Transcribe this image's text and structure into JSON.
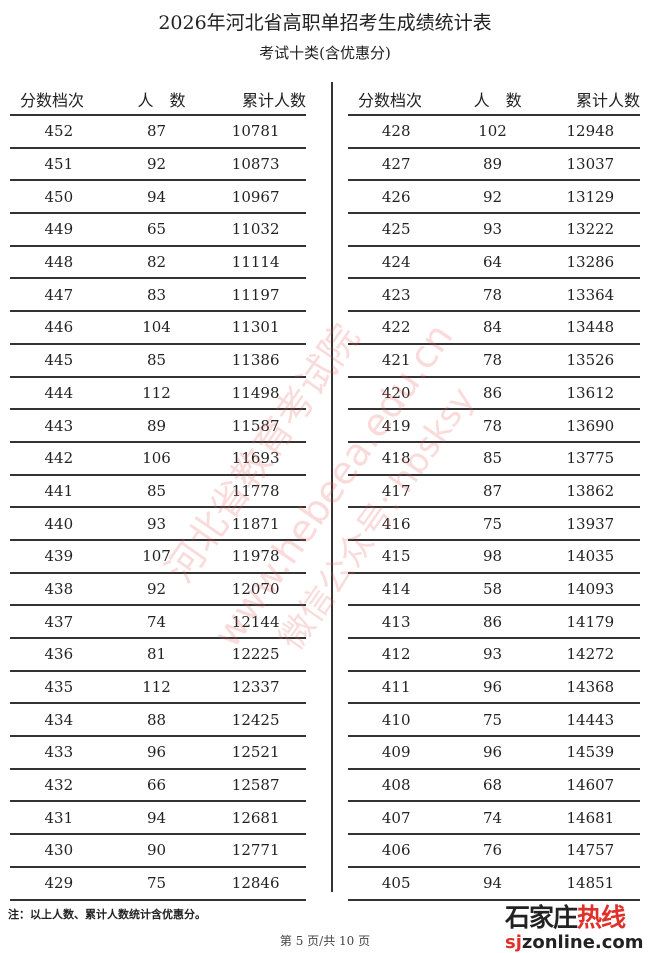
{
  "title": "2026年河北省高职单招考生成绩统计表",
  "subtitle": "考试十类(含优惠分)",
  "headers": [
    "分数档次",
    "人　数",
    "累计人数"
  ],
  "left_rows": [
    [
      452,
      87,
      10781
    ],
    [
      451,
      92,
      10873
    ],
    [
      450,
      94,
      10967
    ],
    [
      449,
      65,
      11032
    ],
    [
      448,
      82,
      11114
    ],
    [
      447,
      83,
      11197
    ],
    [
      446,
      104,
      11301
    ],
    [
      445,
      85,
      11386
    ],
    [
      444,
      112,
      11498
    ],
    [
      443,
      89,
      11587
    ],
    [
      442,
      106,
      11693
    ],
    [
      441,
      85,
      11778
    ],
    [
      440,
      93,
      11871
    ],
    [
      439,
      107,
      11978
    ],
    [
      438,
      92,
      12070
    ],
    [
      437,
      74,
      12144
    ],
    [
      436,
      81,
      12225
    ],
    [
      435,
      112,
      12337
    ],
    [
      434,
      88,
      12425
    ],
    [
      433,
      96,
      12521
    ],
    [
      432,
      66,
      12587
    ],
    [
      431,
      94,
      12681
    ],
    [
      430,
      90,
      12771
    ],
    [
      429,
      75,
      12846
    ]
  ],
  "right_rows": [
    [
      428,
      102,
      12948
    ],
    [
      427,
      89,
      13037
    ],
    [
      426,
      92,
      13129
    ],
    [
      425,
      93,
      13222
    ],
    [
      424,
      64,
      13286
    ],
    [
      423,
      78,
      13364
    ],
    [
      422,
      84,
      13448
    ],
    [
      421,
      78,
      13526
    ],
    [
      420,
      86,
      13612
    ],
    [
      419,
      78,
      13690
    ],
    [
      418,
      85,
      13775
    ],
    [
      417,
      87,
      13862
    ],
    [
      416,
      75,
      13937
    ],
    [
      415,
      98,
      14035
    ],
    [
      414,
      58,
      14093
    ],
    [
      413,
      86,
      14179
    ],
    [
      412,
      93,
      14272
    ],
    [
      411,
      96,
      14368
    ],
    [
      410,
      75,
      14443
    ],
    [
      409,
      96,
      14539
    ],
    [
      408,
      68,
      14607
    ],
    [
      407,
      74,
      14681
    ],
    [
      406,
      76,
      14757
    ],
    [
      405,
      94,
      14851
    ]
  ],
  "note": "注：以上人数、累计人数统计含优惠分。",
  "page_label": "第 5 页/共 10 页",
  "watermark": [
    "河北省教育考试院",
    "www.hebeea.edu.cn",
    "微信公众号: hbsksy"
  ],
  "logo": {
    "line1a": "石家庄",
    "line1b": "热线",
    "line2a": "sj",
    "line2b": "zonline.com"
  },
  "colors": {
    "watermark": "#e65a5a",
    "logo_red": "#e0302a"
  }
}
